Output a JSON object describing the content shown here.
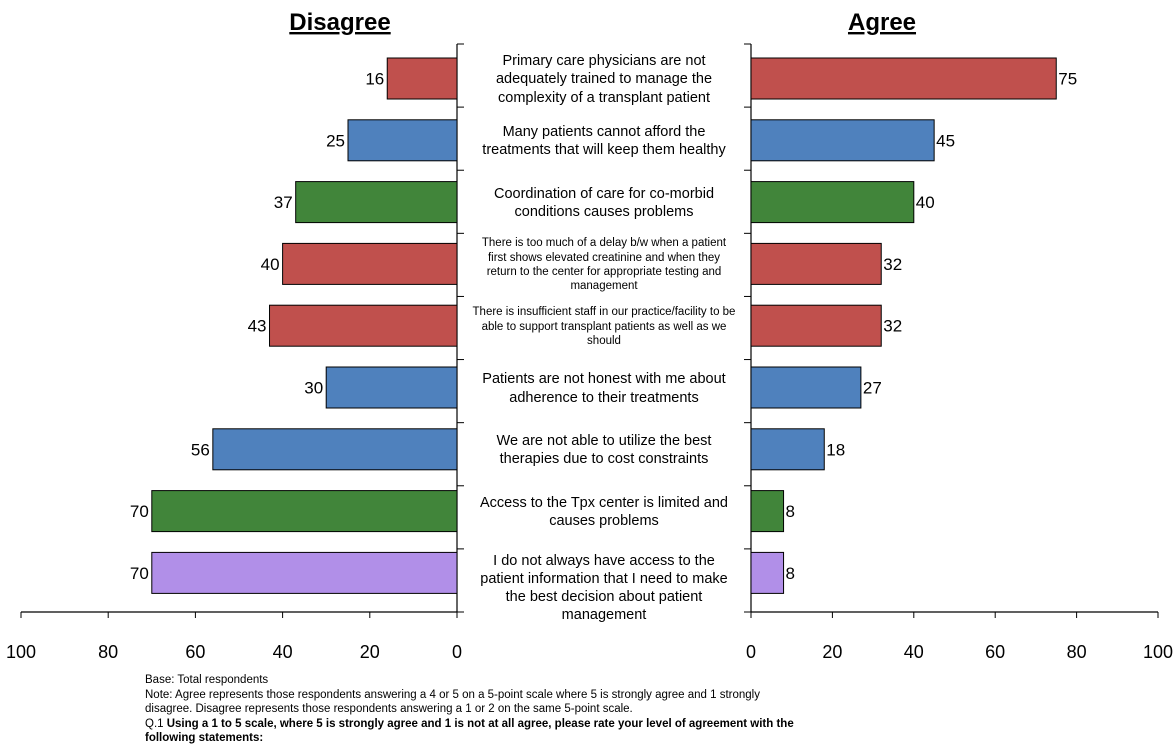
{
  "chart_data": {
    "type": "bar",
    "orientation": "horizontal",
    "layout": "back-to-back",
    "panels": [
      {
        "title": "Disagree",
        "xlim": [
          0,
          100
        ],
        "direction": "reversed",
        "ticks": [
          "100",
          "80",
          "60",
          "40",
          "20",
          "0"
        ]
      },
      {
        "title": "Agree",
        "xlim": [
          0,
          100
        ],
        "direction": "normal",
        "ticks": [
          "0",
          "20",
          "40",
          "60",
          "80",
          "100"
        ]
      }
    ],
    "categories": [
      "Primary care physicians are not adequately trained to manage the complexity of a transplant patient",
      "Many patients cannot afford the treatments that will keep them healthy",
      "Coordination of care for co-morbid conditions causes problems",
      "There is too much of a delay b/w when a patient first shows elevated creatinine and when they return to the center for appropriate testing and management",
      "There is insufficient staff in our practice/facility to be able to support transplant patients as well as we should",
      "Patients are not honest with me about adherence to their treatments",
      "We are not able to utilize the best therapies due to cost constraints",
      "Access to the Tpx center is limited and causes problems",
      "I do not always have access to the patient information that I need to make the best decision about patient management"
    ],
    "disagree": [
      16,
      25,
      37,
      40,
      43,
      30,
      56,
      70,
      70
    ],
    "agree": [
      75,
      45,
      40,
      32,
      32,
      27,
      18,
      8,
      8
    ],
    "bar_colors": [
      "#c0504d",
      "#4f81bd",
      "#41853a",
      "#c0504d",
      "#c0504d",
      "#4f81bd",
      "#4f81bd",
      "#41853a",
      "#b18fe8"
    ],
    "grid": false
  },
  "notes": {
    "base": "Base: Total respondents",
    "note_line1": "Note: Agree represents those respondents answering a 4 or 5 on a 5-point scale where 5 is strongly agree and 1 strongly",
    "note_line2": "disagree. Disagree represents those respondents answering a 1 or 2 on the same 5-point scale.",
    "question_prefix": "Q.1 ",
    "question_line1": "Using a 1 to 5 scale, where 5 is strongly agree and 1 is not at all agree, please rate your level of agreement with the",
    "question_line2": "following statements:"
  }
}
